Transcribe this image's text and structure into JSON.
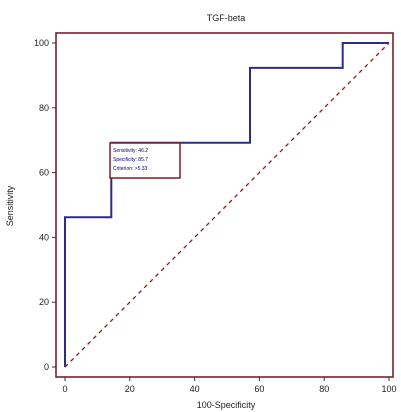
{
  "chart_data": {
    "type": "line",
    "title": "TGF-beta",
    "xlabel": "100-Specificity",
    "ylabel": "Sensitivity",
    "xlim": [
      0,
      100
    ],
    "ylim": [
      0,
      100
    ],
    "xticks": [
      0,
      20,
      40,
      60,
      80,
      100
    ],
    "yticks": [
      0,
      20,
      40,
      60,
      80,
      100
    ],
    "grid": false,
    "legend_position": "center-left",
    "legend_lines": [
      "Sensitivity: 46.2",
      "Specificity: 85.7",
      "Criterion: >5.33"
    ],
    "series": [
      {
        "style": "step",
        "color": "#2b2b8c",
        "x": [
          0,
          0,
          14.3,
          14.3,
          57.1,
          57.1,
          85.7,
          85.7,
          100
        ],
        "y": [
          0,
          46.2,
          46.2,
          69.2,
          69.2,
          92.3,
          92.3,
          100,
          100
        ]
      },
      {
        "style": "dashed",
        "color": "#8b1a1a",
        "x": [
          0,
          100
        ],
        "y": [
          0,
          100
        ]
      }
    ],
    "frame_color": "#7a1f2b"
  }
}
